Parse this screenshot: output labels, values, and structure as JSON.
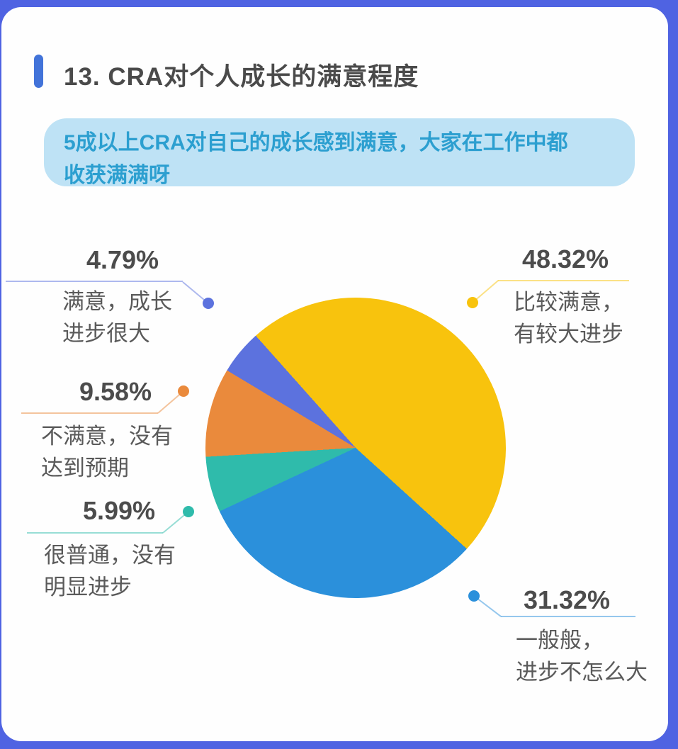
{
  "page": {
    "background_color": "#4F63E2",
    "card_color": "#FEFEFE"
  },
  "header": {
    "title": "13. CRA对个人成长的满意程度",
    "accent_color": "#4273D9",
    "title_color": "#4A4A4A"
  },
  "callout": {
    "line1": "5成以上CRA对自己的成长感到满意，大家在工作中都",
    "line2": "收获满满呀",
    "background_color": "#BEE2F5",
    "text_color": "#2C9FD0"
  },
  "chart_data": {
    "type": "pie",
    "title": "CRA对个人成长的满意程度",
    "conic_from_deg": -41.7,
    "direction": "clockwise",
    "slices": [
      {
        "label": "比较满意，有较大进步",
        "value": 48.32,
        "display": "48.32%",
        "color": "#F8C30D"
      },
      {
        "label": "一般般，进步不怎么大",
        "value": 31.32,
        "display": "31.32%",
        "color": "#2B90DB"
      },
      {
        "label": "很普通，没有明显进步",
        "value": 5.99,
        "display": "5.99%",
        "color": "#2FBBAB"
      },
      {
        "label": "不满意，没有达到预期",
        "value": 9.58,
        "display": "9.58%",
        "color": "#EA8A3C"
      },
      {
        "label": "满意，成长进步很大",
        "value": 4.79,
        "display": "4.79%",
        "color": "#5C72DE"
      }
    ],
    "legend_position": "callout-labels-around-pie"
  },
  "labels": [
    {
      "pct": "4.79%",
      "line1": "满意，成长",
      "line2": "进步很大",
      "slice": 4
    },
    {
      "pct": "48.32%",
      "line1": "比较满意，",
      "line2": "有较大进步",
      "slice": 0
    },
    {
      "pct": "9.58%",
      "line1": "不满意，没有",
      "line2": "达到预期",
      "slice": 3
    },
    {
      "pct": "5.99%",
      "line1": "很普通，没有",
      "line2": "明显进步",
      "slice": 2
    },
    {
      "pct": "31.32%",
      "line1": "一般般，",
      "line2": "进步不怎么大",
      "slice": 1
    }
  ],
  "text_colors": {
    "percent": "#4C4C4C",
    "caption": "#5A5A5A"
  }
}
